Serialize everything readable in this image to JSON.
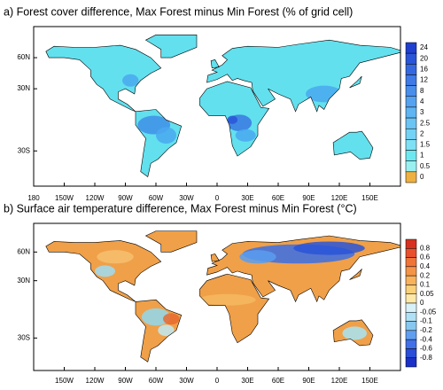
{
  "panels": [
    {
      "title": "a) Forest cover difference, Max Forest minus Min Forest (% of grid cell)",
      "lat_labels": [
        "60N",
        "30N",
        "30S"
      ],
      "lon_labels": [
        "180",
        "150W",
        "120W",
        "90W",
        "60W",
        "30W",
        "0",
        "30E",
        "60E",
        "90E",
        "120E",
        "150E"
      ],
      "colorbar_labels": [
        "24",
        "20",
        "16",
        "12",
        "8",
        "4",
        "3",
        "2.5",
        "2",
        "1.5",
        "1",
        "0.5",
        "0"
      ]
    },
    {
      "title": "b) Surface air temperature difference, Max Forest minus Min Forest (°C)",
      "lat_labels": [
        "60N",
        "30N",
        "30S"
      ],
      "lon_labels": [
        "150W",
        "120W",
        "90W",
        "60W",
        "30W",
        "0",
        "30E",
        "60E",
        "90E",
        "120E",
        "150E"
      ],
      "colorbar_labels": [
        "0.8",
        "0.6",
        "0.4",
        "0.2",
        "0.1",
        "0.05",
        "0",
        "-0.05",
        "-0.1",
        "-0.2",
        "-0.4",
        "-0.6",
        "-0.8"
      ]
    }
  ]
}
